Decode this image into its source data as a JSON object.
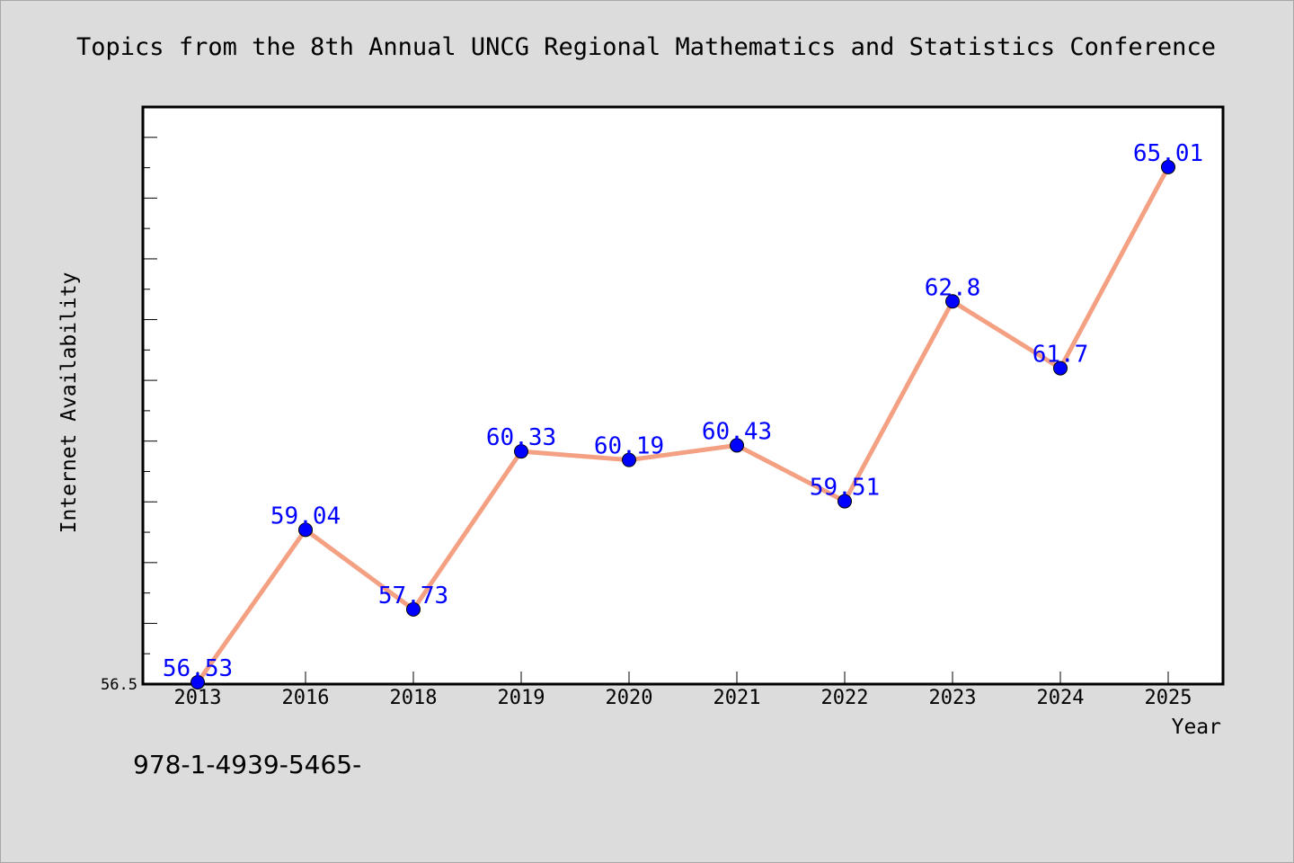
{
  "chart_data": {
    "type": "line",
    "title": "Topics from the 8th Annual UNCG Regional Mathematics and Statistics Conference",
    "xlabel": "Year",
    "ylabel": "Internet Availability",
    "categories": [
      "2013",
      "2016",
      "2018",
      "2019",
      "2020",
      "2021",
      "2022",
      "2023",
      "2024",
      "2025"
    ],
    "values": [
      56.53,
      59.04,
      57.73,
      60.33,
      60.19,
      60.43,
      59.51,
      62.8,
      61.7,
      65.01
    ],
    "data_labels": [
      "56.53",
      "59.04",
      "57.73",
      "60.33",
      "60.19",
      "60.43",
      "59.51",
      "62.8",
      "61.7",
      "65.01"
    ],
    "ylim": [
      56.5,
      66.0
    ],
    "y_min_label": "56.5",
    "grid": false,
    "legend": "none",
    "line_color": "#f4a082",
    "marker_color": "#0000ff",
    "label_color": "#0000ff"
  },
  "footer": {
    "isbn": "978-1-4939-5465-"
  }
}
